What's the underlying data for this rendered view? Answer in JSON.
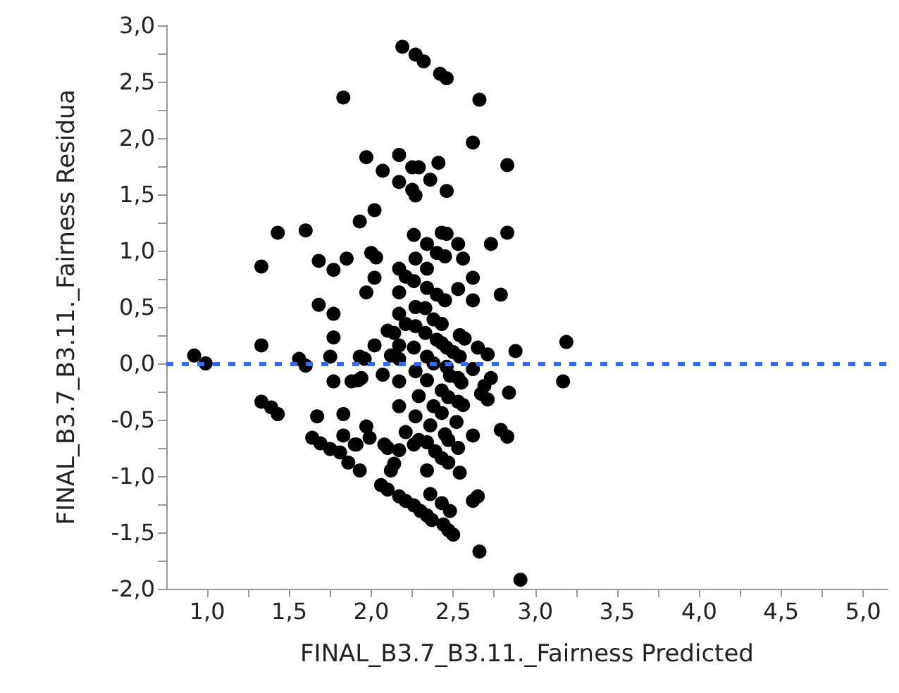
{
  "chart_data": {
    "type": "scatter",
    "xlabel": "FINAL_B3.7_B3.11._Fairness Predicted",
    "ylabel": "FINAL_B3.7_B3.11._Fairness Residua",
    "marker": "circle",
    "grid": false,
    "xlim": [
      0.75,
      5.15
    ],
    "xticks": [
      {
        "value": 1,
        "label": "1,0"
      },
      {
        "value": 1.25,
        "label": null
      },
      {
        "value": 1.5,
        "label": "1,5"
      },
      {
        "value": 1.75,
        "label": null
      },
      {
        "value": 2,
        "label": "2,0"
      },
      {
        "value": 2.25,
        "label": null
      },
      {
        "value": 2.5,
        "label": "2,5"
      },
      {
        "value": 2.75,
        "label": null
      },
      {
        "value": 3,
        "label": "3,0"
      },
      {
        "value": 3.25,
        "label": null
      },
      {
        "value": 3.5,
        "label": "3,5"
      },
      {
        "value": 3.75,
        "label": null
      },
      {
        "value": 4,
        "label": "4,0"
      },
      {
        "value": 4.25,
        "label": null
      },
      {
        "value": 4.5,
        "label": "4,5"
      },
      {
        "value": 4.75,
        "label": null
      },
      {
        "value": 5,
        "label": "5,0"
      }
    ],
    "ylim": [
      -2,
      3
    ],
    "yticks": [
      {
        "value": -2,
        "label": "-2,0"
      },
      {
        "value": -1.75,
        "label": null
      },
      {
        "value": -1.5,
        "label": "-1,5"
      },
      {
        "value": -1.25,
        "label": null
      },
      {
        "value": -1,
        "label": "-1,0"
      },
      {
        "value": -0.75,
        "label": null
      },
      {
        "value": -0.5,
        "label": "-0,5"
      },
      {
        "value": -0.25,
        "label": null
      },
      {
        "value": 0,
        "label": "0,0"
      },
      {
        "value": 0.25,
        "label": null
      },
      {
        "value": 0.5,
        "label": "0,5"
      },
      {
        "value": 0.75,
        "label": null
      },
      {
        "value": 1,
        "label": "1,0"
      },
      {
        "value": 1.25,
        "label": null
      },
      {
        "value": 1.5,
        "label": "1,5"
      },
      {
        "value": 1.75,
        "label": null
      },
      {
        "value": 2,
        "label": "2,0"
      },
      {
        "value": 2.25,
        "label": null
      },
      {
        "value": 2.5,
        "label": "2,5"
      },
      {
        "value": 2.75,
        "label": null
      },
      {
        "value": 3,
        "label": "3,0"
      }
    ],
    "ref_lines": [
      {
        "axis": "y",
        "value": 0,
        "color": "#2f6bff",
        "line_style": "dashed"
      }
    ],
    "series": [
      {
        "color": "#000000",
        "x": [
          1.83,
          1.43,
          1.6,
          1.33,
          1.68,
          1.77,
          1.85,
          1.68,
          2.19,
          2.27,
          2.32,
          2.42,
          2.46,
          2.66,
          2.62,
          1.97,
          2.17,
          2.07,
          2.25,
          2.29,
          2.41,
          2.83,
          2.17,
          2.36,
          2.25,
          2.27,
          2.46,
          2.02,
          1.93,
          2.26,
          2.43,
          2.46,
          2.34,
          2.53,
          2.83,
          2.73,
          2.4,
          2.45,
          2.56,
          2.0,
          2.03,
          2.27,
          2.34,
          2.17,
          2.21,
          2.26,
          2.02,
          2.62,
          1.97,
          2.17,
          2.34,
          2.4,
          2.45,
          2.53,
          2.62,
          2.79,
          2.27,
          2.33,
          1.77,
          1.77,
          1.33,
          0.92,
          0.99,
          1.56,
          1.6,
          1.75,
          1.77,
          1.88,
          1.33,
          1.39,
          1.43,
          1.67,
          1.83,
          1.83,
          1.64,
          1.69,
          1.75,
          1.81,
          1.86,
          1.9,
          2.17,
          2.38,
          2.43,
          2.21,
          2.27,
          2.1,
          2.14,
          2.33,
          2.4,
          2.43,
          2.54,
          2.57,
          2.02,
          2.17,
          2.26,
          2.46,
          2.5,
          2.54,
          2.65,
          2.71,
          2.88,
          3.19,
          1.93,
          1.96,
          2.12,
          2.17,
          2.34,
          2.38,
          2.46,
          2.62,
          2.07,
          2.27,
          2.34,
          2.48,
          2.53,
          2.55,
          1.92,
          1.94,
          2.17,
          2.73,
          2.69,
          2.67,
          2.71,
          2.84,
          3.17,
          2.29,
          2.43,
          2.47,
          2.53,
          2.56,
          2.17,
          2.38,
          2.43,
          2.27,
          2.36,
          2.52,
          1.97,
          1.99,
          2.21,
          2.45,
          2.47,
          2.62,
          2.79,
          2.83,
          1.91,
          2.08,
          2.1,
          2.17,
          2.26,
          2.29,
          2.34,
          2.53,
          2.39,
          2.43,
          2.47,
          2.14,
          2.12,
          1.93,
          2.34,
          2.54,
          2.06,
          2.1,
          2.17,
          2.21,
          2.26,
          2.3,
          2.34,
          2.37,
          2.36,
          2.43,
          2.48,
          2.44,
          2.47,
          2.5,
          2.62,
          2.65,
          2.66,
          2.91
        ],
        "values": [
          2.36,
          1.16,
          1.18,
          0.86,
          0.91,
          0.83,
          0.93,
          0.52,
          2.81,
          2.74,
          2.68,
          2.57,
          2.53,
          2.34,
          1.96,
          1.83,
          1.85,
          1.71,
          1.74,
          1.74,
          1.78,
          1.76,
          1.61,
          1.63,
          1.54,
          1.49,
          1.53,
          1.36,
          1.26,
          1.14,
          1.16,
          1.15,
          1.06,
          1.06,
          1.16,
          1.06,
          0.98,
          0.95,
          0.93,
          0.98,
          0.94,
          0.93,
          0.84,
          0.84,
          0.77,
          0.73,
          0.76,
          0.76,
          0.63,
          0.63,
          0.67,
          0.61,
          0.56,
          0.66,
          0.56,
          0.61,
          0.5,
          0.49,
          0.44,
          0.23,
          0.16,
          0.07,
          0.0,
          0.04,
          -0.02,
          0.06,
          -0.16,
          -0.16,
          -0.34,
          -0.39,
          -0.45,
          -0.47,
          -0.45,
          -0.64,
          -0.66,
          -0.71,
          -0.76,
          -0.79,
          -0.88,
          -0.72,
          0.44,
          0.39,
          0.35,
          0.35,
          0.33,
          0.29,
          0.27,
          0.27,
          0.21,
          0.18,
          0.25,
          0.22,
          0.16,
          0.16,
          0.14,
          0.14,
          0.1,
          0.06,
          0.14,
          0.08,
          0.11,
          0.19,
          0.06,
          0.04,
          0.07,
          0.04,
          0.06,
          0.0,
          -0.03,
          -0.05,
          -0.1,
          -0.07,
          -0.15,
          -0.11,
          -0.13,
          -0.17,
          -0.15,
          -0.13,
          -0.16,
          -0.13,
          -0.2,
          -0.27,
          -0.32,
          -0.26,
          -0.16,
          -0.29,
          -0.24,
          -0.3,
          -0.34,
          -0.37,
          -0.38,
          -0.38,
          -0.44,
          -0.47,
          -0.55,
          -0.52,
          -0.56,
          -0.66,
          -0.61,
          -0.63,
          -0.68,
          -0.64,
          -0.59,
          -0.65,
          -0.72,
          -0.72,
          -0.75,
          -0.77,
          -0.72,
          -0.68,
          -0.7,
          -0.75,
          -0.78,
          -0.84,
          -0.88,
          -0.89,
          -0.95,
          -0.95,
          -0.95,
          -0.97,
          -1.08,
          -1.12,
          -1.18,
          -1.22,
          -1.26,
          -1.31,
          -1.35,
          -1.39,
          -1.16,
          -1.24,
          -1.31,
          -1.43,
          -1.48,
          -1.52,
          -1.22,
          -1.18,
          -1.67,
          -1.92
        ]
      }
    ]
  }
}
